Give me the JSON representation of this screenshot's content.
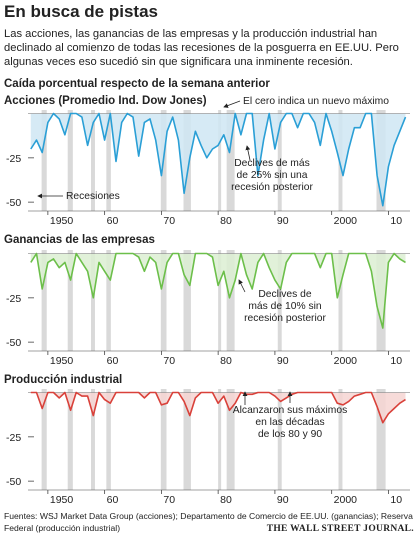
{
  "header": {
    "title": "En busca de pistas",
    "subtitle": [
      "Las acciones, las ganancias de las empresas y la producción industrial han",
      "declinado al comienzo de todas las recesiones de la posguerra en EE.UU. Pero",
      "algunas veces eso sucedió sin que significara una inminente recesión."
    ],
    "section_label": "Caída porcentual respecto de la semana anterior"
  },
  "recessions": [
    [
      1948.9,
      1949.8
    ],
    [
      1953.5,
      1954.4
    ],
    [
      1957.6,
      1958.3
    ],
    [
      1960.3,
      1961.1
    ],
    [
      1969.9,
      1970.9
    ],
    [
      1973.9,
      1975.2
    ],
    [
      1980.0,
      1980.5
    ],
    [
      1981.5,
      1982.9
    ],
    [
      1990.5,
      1991.2
    ],
    [
      2001.2,
      2001.9
    ],
    [
      2007.9,
      2009.5
    ]
  ],
  "chart_data": [
    {
      "type": "area",
      "title": "Acciones (Promedio Ind. Dow Jones)",
      "color": "#2a9fd6",
      "fill": "#cfe6f3",
      "xlim": [
        1946.5,
        2013.8
      ],
      "xticks": [
        1950,
        {
          "value": 1960,
          "label": "60"
        },
        {
          "value": 1970,
          "label": "70"
        },
        {
          "value": 1980,
          "label": "80"
        },
        {
          "value": 1990,
          "label": "90"
        },
        2000,
        {
          "value": 2010,
          "label": "10"
        }
      ],
      "ylim": [
        -55,
        2
      ],
      "yticks": [
        -25,
        -50
      ],
      "x": [
        1947,
        1948,
        1949,
        1950,
        1951,
        1952,
        1953,
        1954,
        1955,
        1956,
        1957,
        1958,
        1959,
        1960,
        1961,
        1962,
        1963,
        1964,
        1965,
        1966,
        1967,
        1968,
        1969,
        1970,
        1971,
        1972,
        1973,
        1974,
        1975,
        1976,
        1977,
        1978,
        1979,
        1980,
        1981,
        1982,
        1983,
        1984,
        1985,
        1986,
        1987,
        1988,
        1989,
        1990,
        1991,
        1992,
        1993,
        1994,
        1995,
        1996,
        1997,
        1998,
        1999,
        2000,
        2001,
        2002,
        2003,
        2004,
        2005,
        2006,
        2007,
        2008,
        2009,
        2010,
        2011,
        2012,
        2013
      ],
      "values": [
        -20,
        -15,
        -22,
        -5,
        0,
        -3,
        -12,
        0,
        0,
        -2,
        -18,
        -5,
        0,
        -15,
        0,
        -27,
        -5,
        0,
        -2,
        -24,
        -5,
        -3,
        -15,
        -35,
        -10,
        -2,
        -15,
        -45,
        -25,
        -10,
        -18,
        -25,
        -20,
        -18,
        -12,
        -22,
        0,
        -12,
        0,
        0,
        -35,
        -15,
        0,
        -20,
        -5,
        0,
        0,
        -8,
        0,
        0,
        -5,
        -18,
        0,
        -10,
        -22,
        -35,
        -20,
        -8,
        -8,
        0,
        0,
        -35,
        -52,
        -30,
        -18,
        -10,
        -2
      ],
      "annotations": [
        {
          "lines": [
            "El cero indica un nuevo máximo"
          ]
        },
        {
          "lines": [
            "Declives de más",
            "de 25% sin una",
            "recesión posterior"
          ]
        },
        {
          "lines": [
            "Recesiones"
          ]
        }
      ]
    },
    {
      "type": "area",
      "title": "Ganancias de las empresas",
      "color": "#6cbf4a",
      "fill": "#dcefd2",
      "xlim": [
        1946.5,
        2013.8
      ],
      "xticks": [
        1950,
        {
          "value": 1960,
          "label": "60"
        },
        {
          "value": 1970,
          "label": "70"
        },
        {
          "value": 1980,
          "label": "80"
        },
        {
          "value": 1990,
          "label": "90"
        },
        2000,
        {
          "value": 2010,
          "label": "10"
        }
      ],
      "ylim": [
        -55,
        2
      ],
      "yticks": [
        -25,
        -50
      ],
      "x": [
        1947,
        1948,
        1949,
        1950,
        1951,
        1952,
        1953,
        1954,
        1955,
        1956,
        1957,
        1958,
        1959,
        1960,
        1961,
        1962,
        1963,
        1964,
        1965,
        1966,
        1967,
        1968,
        1969,
        1970,
        1971,
        1972,
        1973,
        1974,
        1975,
        1976,
        1977,
        1978,
        1979,
        1980,
        1981,
        1982,
        1983,
        1984,
        1985,
        1986,
        1987,
        1988,
        1989,
        1990,
        1991,
        1992,
        1993,
        1994,
        1995,
        1996,
        1997,
        1998,
        1999,
        2000,
        2001,
        2002,
        2003,
        2004,
        2005,
        2006,
        2007,
        2008,
        2009,
        2010,
        2011,
        2012,
        2013
      ],
      "values": [
        -5,
        0,
        -20,
        -5,
        -3,
        -8,
        -5,
        -15,
        0,
        -5,
        -10,
        -25,
        -5,
        -10,
        -15,
        0,
        0,
        0,
        0,
        -2,
        -10,
        -2,
        -5,
        -20,
        -5,
        0,
        0,
        -12,
        -18,
        0,
        0,
        0,
        -2,
        -18,
        -10,
        -25,
        -15,
        0,
        -12,
        -20,
        -5,
        0,
        -8,
        -15,
        -20,
        -5,
        0,
        0,
        0,
        0,
        0,
        -8,
        0,
        0,
        -25,
        -12,
        0,
        0,
        0,
        0,
        -10,
        -30,
        -42,
        -5,
        0,
        -3,
        -5
      ],
      "annotations": [
        {
          "lines": [
            "Declives de",
            "más de 10% sin",
            "recesión posterior"
          ]
        }
      ]
    },
    {
      "type": "area",
      "title": "Producción industrial",
      "color": "#d9413a",
      "fill": "#f6d5d2",
      "xlim": [
        1946.5,
        2013.8
      ],
      "xticks": [
        1950,
        {
          "value": 1960,
          "label": "60"
        },
        {
          "value": 1970,
          "label": "70"
        },
        {
          "value": 1980,
          "label": "80"
        },
        {
          "value": 1990,
          "label": "90"
        },
        2000,
        {
          "value": 2010,
          "label": "10"
        }
      ],
      "ylim": [
        -55,
        2
      ],
      "yticks": [
        -25,
        -50
      ],
      "x": [
        1947,
        1948,
        1949,
        1950,
        1951,
        1952,
        1953,
        1954,
        1955,
        1956,
        1957,
        1958,
        1959,
        1960,
        1961,
        1962,
        1963,
        1964,
        1965,
        1966,
        1967,
        1968,
        1969,
        1970,
        1971,
        1972,
        1973,
        1974,
        1975,
        1976,
        1977,
        1978,
        1979,
        1980,
        1981,
        1982,
        1983,
        1984,
        1985,
        1986,
        1987,
        1988,
        1989,
        1990,
        1991,
        1992,
        1993,
        1994,
        1995,
        1996,
        1997,
        1998,
        1999,
        2000,
        2001,
        2002,
        2003,
        2004,
        2005,
        2006,
        2007,
        2008,
        2009,
        2010,
        2011,
        2012,
        2013
      ],
      "values": [
        0,
        0,
        -9,
        0,
        0,
        -3,
        0,
        -10,
        0,
        -2,
        -2,
        -13,
        0,
        -4,
        -6,
        0,
        0,
        0,
        0,
        0,
        -3,
        0,
        0,
        -7,
        -6,
        0,
        0,
        -5,
        -13,
        -3,
        0,
        0,
        0,
        -6,
        -2,
        -10,
        -6,
        0,
        -1,
        -1,
        0,
        0,
        0,
        -2,
        -5,
        -3,
        -1,
        0,
        0,
        0,
        0,
        0,
        0,
        0,
        -6,
        -7,
        -5,
        -2,
        -1,
        0,
        0,
        -8,
        -17,
        -12,
        -9,
        -6,
        -4
      ],
      "annotations": [
        {
          "lines": [
            "Alcanzaron sus máximos",
            "en las décadas",
            "de los 80 y 90"
          ]
        }
      ]
    }
  ],
  "footer": {
    "sources": [
      "Fuentes: WSJ Market Data Group (acciones); Departamento de Comercio de EE.UU. (ganancias); Reserva",
      "Federal (producción industrial)"
    ],
    "brand": "THE WALL STREET JOURNAL."
  }
}
